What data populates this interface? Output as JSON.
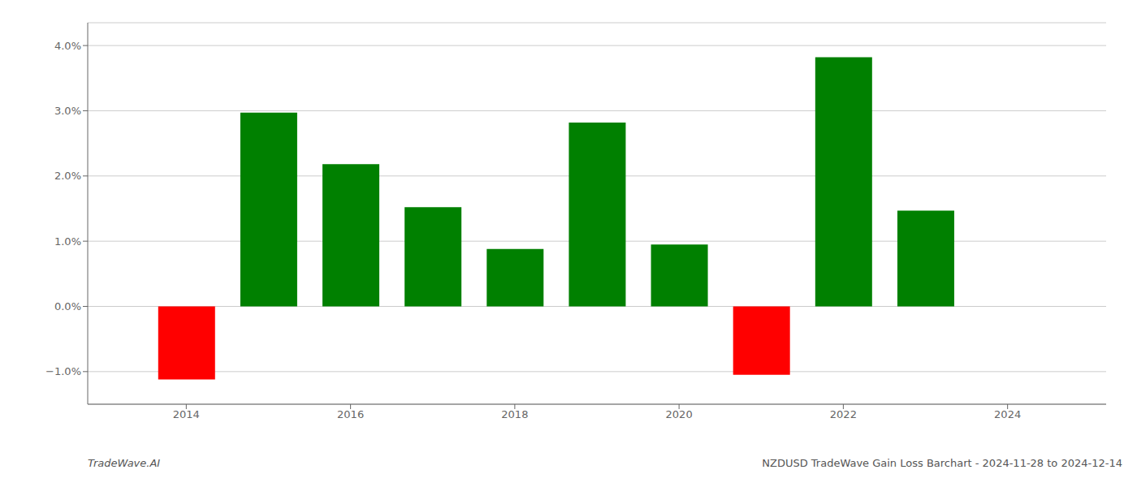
{
  "chart_data": {
    "type": "bar",
    "title": "NZDUSD TradeWave Gain Loss Barchart - 2024-11-28 to 2024-12-14",
    "annotations": [
      "TradeWave.AI"
    ],
    "x": [
      2014,
      2015,
      2016,
      2017,
      2018,
      2019,
      2020,
      2021,
      2022,
      2023
    ],
    "values": [
      -1.12,
      2.97,
      2.18,
      1.52,
      0.88,
      2.82,
      0.95,
      -1.05,
      3.82,
      1.47
    ],
    "colors": [
      "#ff0000",
      "#008000",
      "#008000",
      "#008000",
      "#008000",
      "#008000",
      "#008000",
      "#ff0000",
      "#008000",
      "#008000"
    ],
    "xlim": [
      2012.8,
      2025.2
    ],
    "xticks": [
      2014,
      2016,
      2018,
      2020,
      2022,
      2024
    ],
    "ylim": [
      -1.5,
      4.35
    ],
    "yticks": [
      {
        "value": -1.0,
        "label": "−1.0%"
      },
      {
        "value": 0.0,
        "label": "0.0%"
      },
      {
        "value": 1.0,
        "label": "1.0%"
      },
      {
        "value": 2.0,
        "label": "2.0%"
      },
      {
        "value": 3.0,
        "label": "3.0%"
      },
      {
        "value": 4.0,
        "label": "4.0%"
      }
    ],
    "grid": true
  }
}
